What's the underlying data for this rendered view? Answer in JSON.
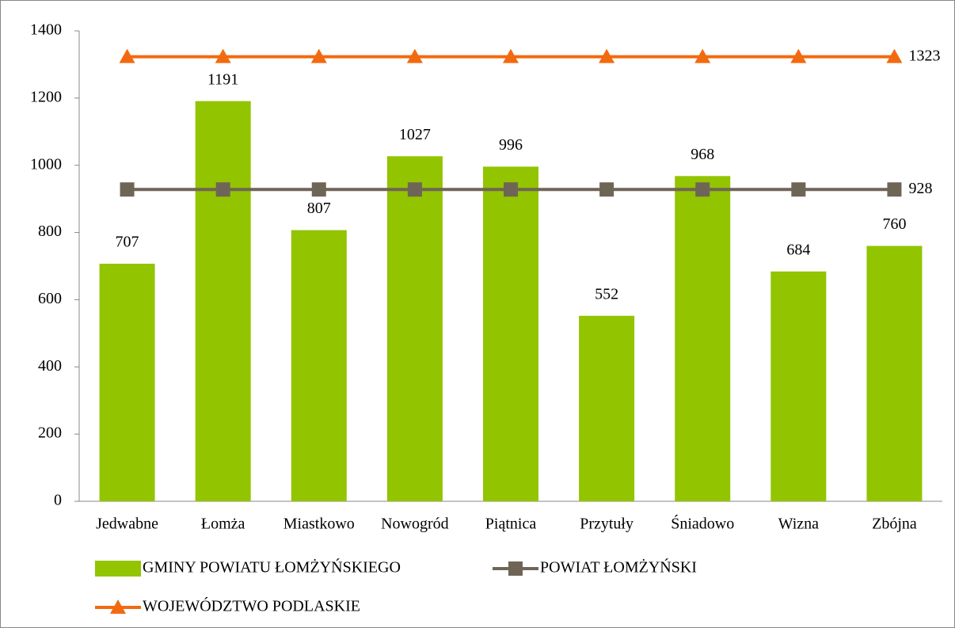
{
  "chart_data": {
    "type": "bar",
    "categories": [
      "Jedwabne",
      "Łomża",
      "Miastkowo",
      "Nowogród",
      "Piątnica",
      "Przytuły",
      "Śniadowo",
      "Wizna",
      "Zbójna"
    ],
    "series": [
      {
        "name": "GMINY POWIATU ŁOMŻYŃSKIEGO",
        "type": "bar",
        "color": "#92c400",
        "values": [
          707,
          1191,
          807,
          1027,
          996,
          552,
          968,
          684,
          760
        ]
      },
      {
        "name": "POWIAT ŁOMŻYŃSKI",
        "type": "line",
        "marker": "square",
        "color": "#6f6557",
        "values": [
          928,
          928,
          928,
          928,
          928,
          928,
          928,
          928,
          928
        ]
      },
      {
        "name": "WOJEWÓDZTWO PODLASKIE",
        "type": "line",
        "marker": "triangle",
        "color": "#f26a10",
        "values": [
          1323,
          1323,
          1323,
          1323,
          1323,
          1323,
          1323,
          1323,
          1323
        ]
      }
    ],
    "ylim": [
      0,
      1400
    ],
    "yticks": [
      0,
      200,
      400,
      600,
      800,
      1000,
      1200,
      1400
    ],
    "grid": false
  }
}
